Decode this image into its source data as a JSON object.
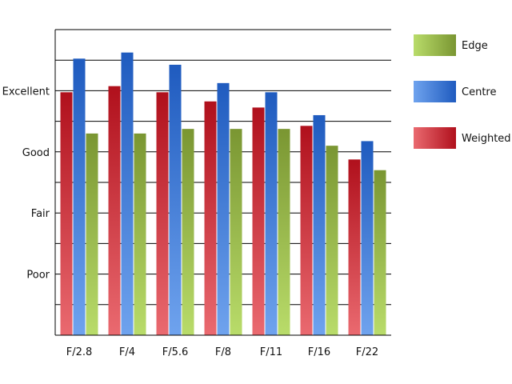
{
  "chart_data": {
    "type": "bar",
    "title": "",
    "xlabel": "",
    "ylabel": "",
    "categories": [
      "F/2.8",
      "F/4",
      "F/5.6",
      "F/8",
      "F/11",
      "F/16",
      "F/22"
    ],
    "y_tick_labels": [
      {
        "label": "Poor",
        "value": 2
      },
      {
        "label": "Fair",
        "value": 4
      },
      {
        "label": "Good",
        "value": 6
      },
      {
        "label": "Excellent",
        "value": 8
      }
    ],
    "ylim": [
      0,
      10
    ],
    "grid": true,
    "legend_position": "right",
    "series": [
      {
        "name": "Weighted",
        "color_dark": "#b0101c",
        "color_light": "#ea6a70",
        "values": [
          7.95,
          8.15,
          7.95,
          7.65,
          7.45,
          6.85,
          5.75
        ]
      },
      {
        "name": "Centre",
        "color_dark": "#1f5bbf",
        "color_light": "#6fa3ee",
        "values": [
          9.05,
          9.25,
          8.85,
          8.25,
          7.95,
          7.2,
          6.35
        ]
      },
      {
        "name": "Edge",
        "color_dark": "#7a9632",
        "color_light": "#b9dc6a",
        "values": [
          6.6,
          6.6,
          6.75,
          6.75,
          6.75,
          6.2,
          5.4
        ]
      }
    ],
    "legend_order": [
      "Edge",
      "Centre",
      "Weighted"
    ]
  }
}
